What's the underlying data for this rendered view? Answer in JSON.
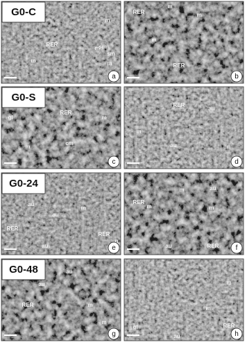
{
  "rows": [
    {
      "label": "G0-C",
      "panels": [
        {
          "letter": "a",
          "annotations": [
            "RER",
            "m",
            "m",
            "sm",
            "sm",
            "m",
            "m"
          ]
        },
        {
          "letter": "b",
          "annotations": [
            "RER",
            "m",
            "m",
            "m",
            "RER"
          ]
        }
      ]
    },
    {
      "label": "G0-S",
      "panels": [
        {
          "letter": "c",
          "annotations": [
            "gl",
            "RER",
            "m",
            "m",
            "cm"
          ]
        },
        {
          "letter": "d",
          "annotations": [
            "RER",
            "au",
            "m",
            "au",
            "n"
          ]
        }
      ]
    },
    {
      "label": "G0-24",
      "panels": [
        {
          "letter": "e",
          "annotations": [
            "au",
            "RER",
            "m",
            "au",
            "RER",
            "n",
            "au"
          ]
        },
        {
          "letter": "f",
          "annotations": [
            "RER",
            "m",
            "m",
            "au",
            "m",
            "au",
            "RER"
          ]
        }
      ]
    },
    {
      "label": "G0-48",
      "panels": [
        {
          "letter": "g",
          "annotations": [
            "au",
            "au",
            "m",
            "RER",
            "m"
          ]
        },
        {
          "letter": "h",
          "annotations": [
            "gl",
            "m",
            "m",
            "RER",
            "au"
          ]
        }
      ]
    }
  ]
}
